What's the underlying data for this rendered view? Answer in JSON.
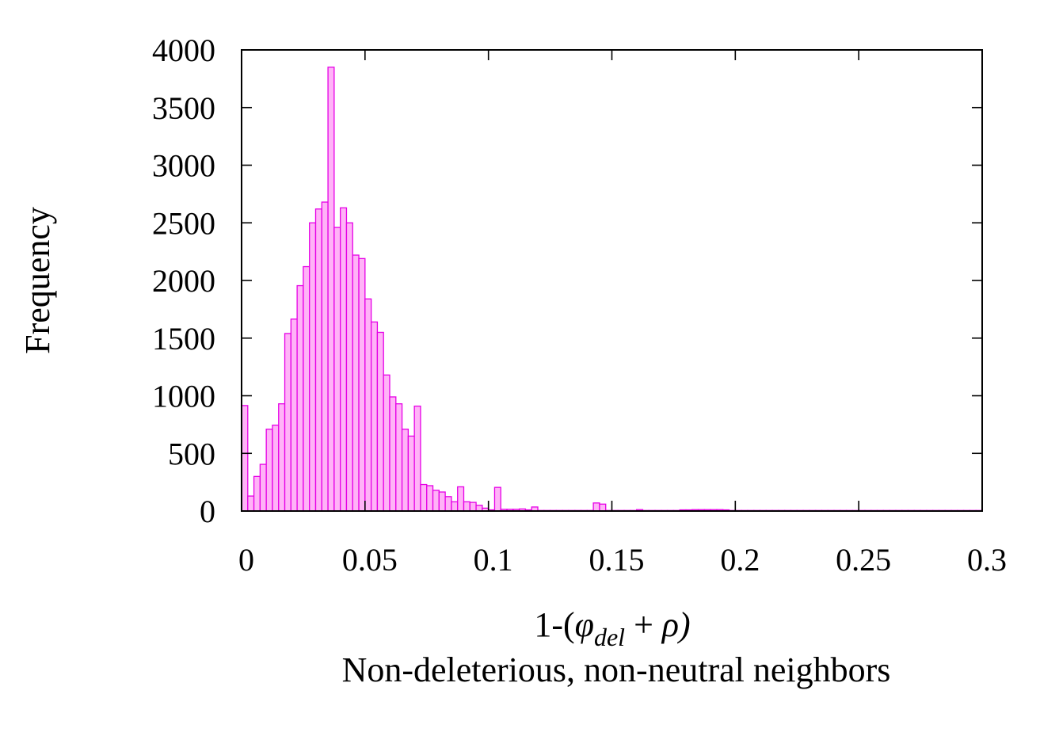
{
  "chart_data": {
    "type": "bar",
    "bin_width": 0.0025,
    "x_start": 0,
    "values": [
      915,
      130,
      300,
      405,
      710,
      745,
      930,
      1540,
      1665,
      1955,
      2120,
      2500,
      2620,
      2680,
      3850,
      2460,
      2630,
      2500,
      2220,
      2190,
      1840,
      1640,
      1550,
      1180,
      990,
      930,
      710,
      650,
      910,
      230,
      220,
      180,
      165,
      125,
      80,
      210,
      80,
      75,
      50,
      25,
      10,
      205,
      15,
      15,
      15,
      18,
      10,
      35,
      5,
      5,
      5,
      5,
      5,
      5,
      5,
      5,
      5,
      70,
      60,
      5,
      5,
      5,
      5,
      5,
      12,
      5,
      5,
      5,
      5,
      5,
      5,
      10,
      10,
      12,
      12,
      12,
      12,
      12,
      10,
      5,
      5,
      5,
      5,
      5,
      5,
      5,
      5,
      5,
      5,
      5,
      5,
      5,
      5,
      5,
      5,
      5,
      5,
      5,
      5,
      5,
      5,
      5,
      5,
      5,
      5,
      5,
      5,
      5,
      5,
      5,
      5,
      5,
      5,
      5,
      5,
      5,
      5,
      5,
      5,
      5
    ],
    "xlim": [
      0,
      0.3
    ],
    "ylim": [
      0,
      4000
    ],
    "x_ticks": [
      "0",
      "0.05",
      "0.1",
      "0.15",
      "0.2",
      "0.25",
      "0.3"
    ],
    "y_ticks": [
      "0",
      "500",
      "1000",
      "1500",
      "2000",
      "2500",
      "3000",
      "3500",
      "4000"
    ],
    "ylabel": "Frequency",
    "xlabel": {
      "prefix": "1-(",
      "phi": "φ",
      "subscript": "del",
      "plus": " + ",
      "rho": "ρ",
      "suffix": ")"
    },
    "subtitle": "Non-deleterious, non-neutral neighbors",
    "grid": false,
    "legend": "none",
    "colors": {
      "bar_fill": "#ffb3f7",
      "bar_edge": "#e600e6"
    }
  }
}
